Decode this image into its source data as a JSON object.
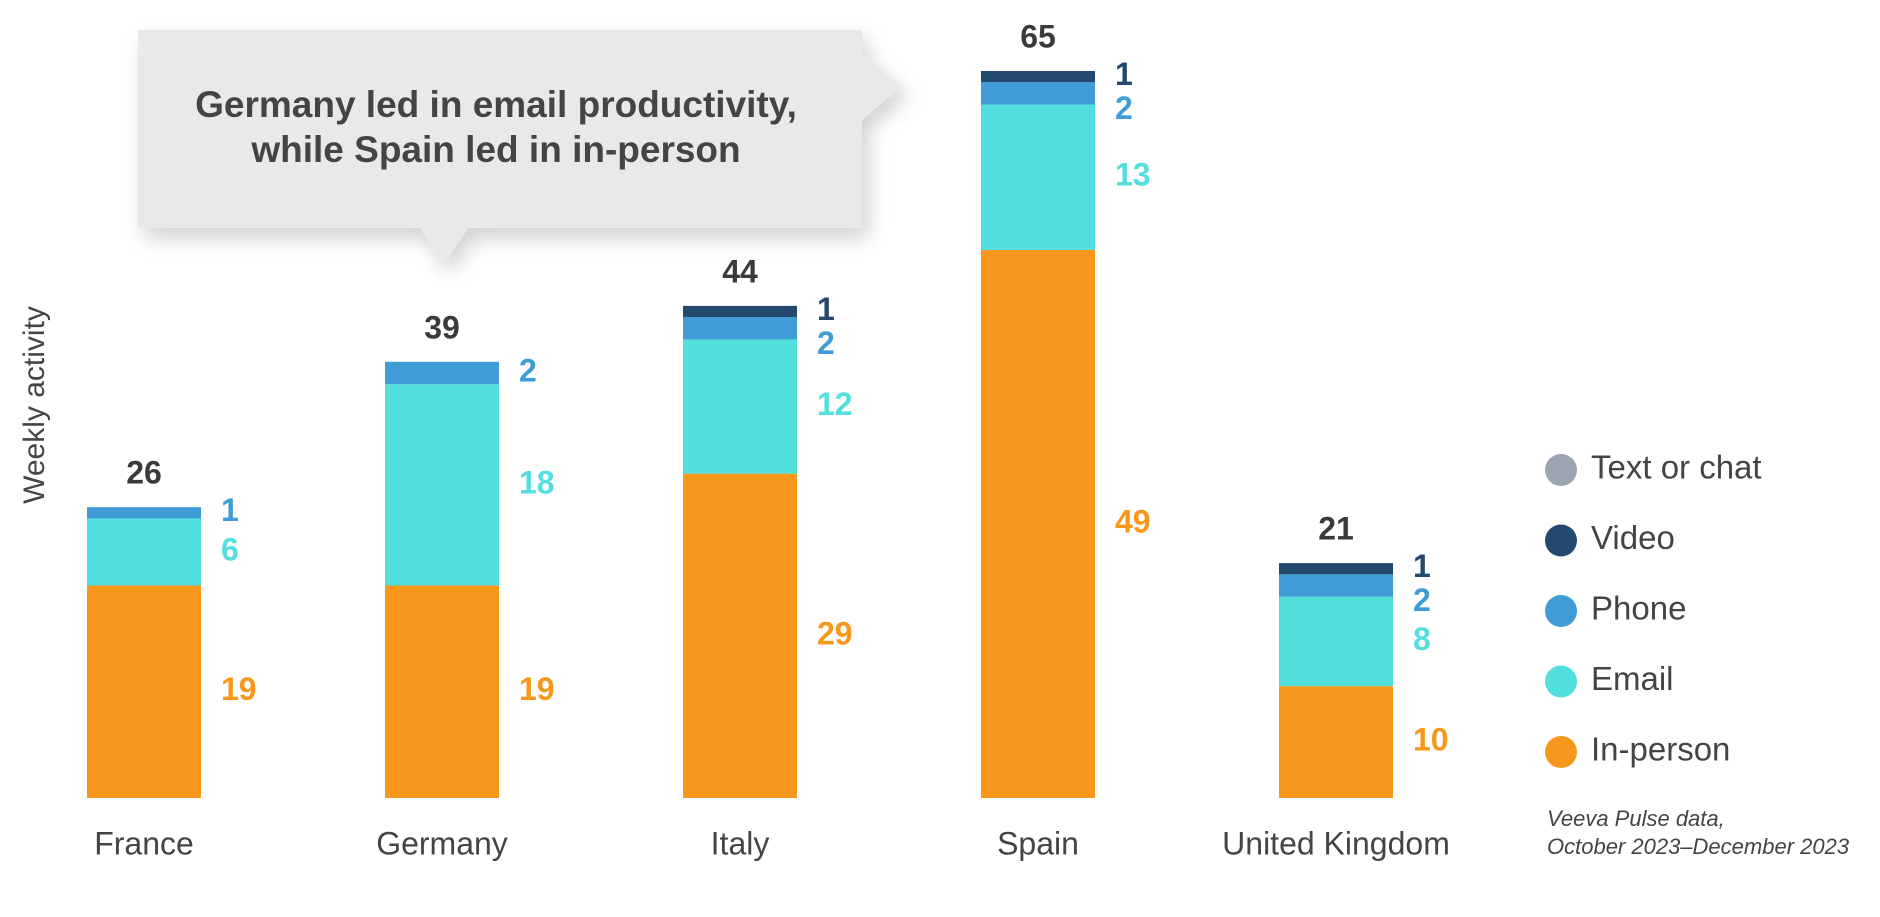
{
  "chart_data": {
    "type": "stacked_bar",
    "annotation": [
      "Germany led in email productivity,",
      "while Spain led in in-person"
    ],
    "y_label": "Weekly activity",
    "categories": [
      "France",
      "Germany",
      "Italy",
      "Spain",
      "United Kingdom"
    ],
    "series": [
      {
        "name": "In-person",
        "color": "#F7981D",
        "values": [
          19,
          19,
          29,
          49,
          10
        ]
      },
      {
        "name": "Email",
        "color": "#52DFDE",
        "values": [
          6,
          18,
          12,
          13,
          8
        ]
      },
      {
        "name": "Phone",
        "color": "#409CD6",
        "values": [
          1,
          2,
          2,
          2,
          2
        ]
      },
      {
        "name": "Video",
        "color": "#234A6E",
        "values": [
          null,
          null,
          1,
          1,
          1
        ]
      },
      {
        "name": "Text or chat",
        "color": "#9BA5B2",
        "values": [
          null,
          null,
          null,
          null,
          null
        ]
      }
    ],
    "totals": [
      26,
      39,
      44,
      65,
      21
    ],
    "note": [
      "Veeva Pulse data,",
      "October 2023–December 2023"
    ]
  }
}
